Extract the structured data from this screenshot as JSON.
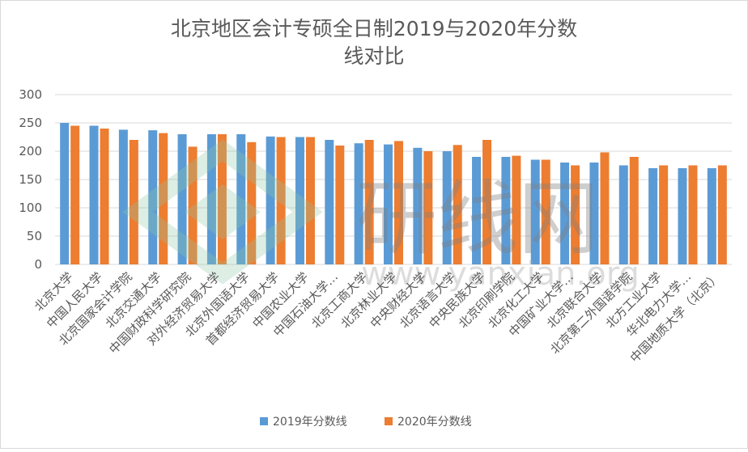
{
  "chart_data": {
    "type": "bar",
    "title_line1": "北京地区会计专硕全日制2019与2020年分数",
    "title_line2": "线对比",
    "categories": [
      "北京大学",
      "中国人民大学",
      "北京国家会计学院",
      "北京交通大学",
      "中国财政科学研究院",
      "对外经济贸易大学",
      "北京外国语大学",
      "首都经济贸易大学",
      "中国农业大学",
      "中国石油大学…",
      "北京工商大学",
      "北京林业大学",
      "中央财经大学",
      "北京语言大学",
      "中央民族大学",
      "北京印刷学院",
      "北京化工大学",
      "中国矿业大学…",
      "北京联合大学",
      "北京第二外国语学院",
      "北方工业大学",
      "华北电力大学…",
      "中国地质大学（北京）"
    ],
    "series": [
      {
        "name": "2019年分数线",
        "color": "#5b9bd5",
        "values": [
          250,
          245,
          238,
          237,
          230,
          230,
          230,
          226,
          225,
          220,
          214,
          212,
          206,
          200,
          190,
          190,
          185,
          180,
          180,
          175,
          170,
          170,
          170
        ]
      },
      {
        "name": "2020年分数线",
        "color": "#ed7d31",
        "values": [
          245,
          240,
          220,
          232,
          208,
          230,
          216,
          225,
          225,
          210,
          220,
          218,
          200,
          211,
          220,
          192,
          185,
          175,
          198,
          190,
          175,
          175,
          175
        ]
      }
    ],
    "ylim": [
      0,
      300
    ],
    "yticks": [
      "0",
      "50",
      "100",
      "150",
      "200",
      "250",
      "300"
    ],
    "grid": true,
    "legend_position": "bottom",
    "watermark": {
      "text_cn": "研线网",
      "text_url": "www.yanxian.org"
    }
  }
}
